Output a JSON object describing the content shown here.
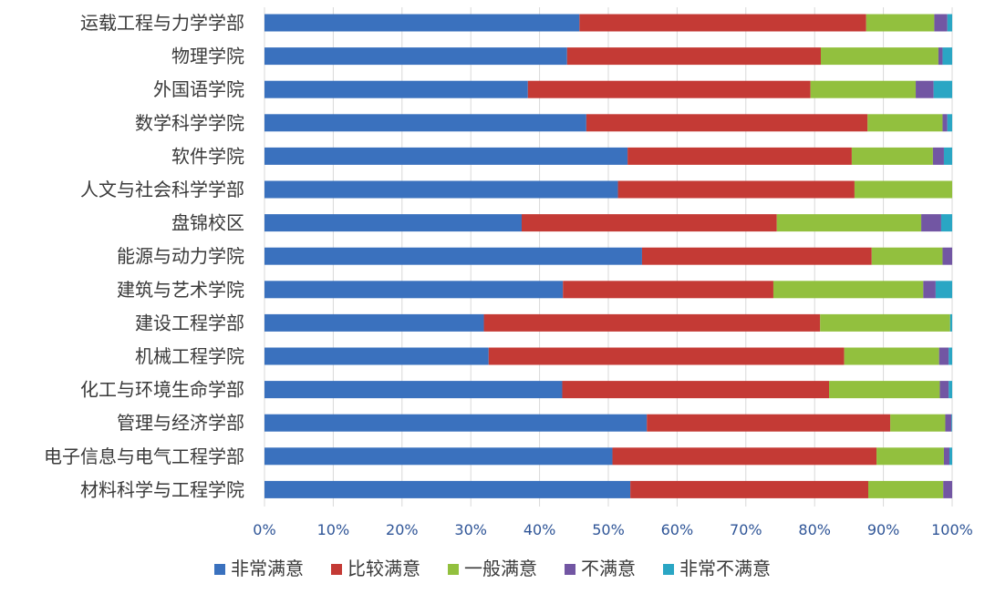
{
  "chart_data": {
    "type": "bar",
    "orientation": "horizontal",
    "stacked": true,
    "percent": true,
    "title": "",
    "xlabel": "",
    "ylabel": "",
    "xlim": [
      0,
      100
    ],
    "x_ticks": [
      "0%",
      "10%",
      "20%",
      "30%",
      "40%",
      "50%",
      "60%",
      "70%",
      "80%",
      "90%",
      "100%"
    ],
    "grid": true,
    "legend_position": "bottom",
    "categories": [
      "运载工程与力学学部",
      "物理学院",
      "外国语学院",
      "数学科学学院",
      "软件学院",
      "人文与社会科学学部",
      "盘锦校区",
      "能源与动力学院",
      "建筑与艺术学院",
      "建设工程学部",
      "机械工程学院",
      "化工与环境生命学部",
      "管理与经济学部",
      "电子信息与电气工程学部",
      "材料科学与工程学院"
    ],
    "series": [
      {
        "name": "非常满意",
        "color": "#3a71be",
        "values": [
          45.8,
          44.0,
          38.3,
          46.8,
          52.8,
          51.4,
          37.4,
          54.9,
          43.4,
          31.9,
          32.6,
          43.3,
          55.6,
          50.6,
          53.2
        ]
      },
      {
        "name": "比较满意",
        "color": "#c43a35",
        "values": [
          41.7,
          36.9,
          41.1,
          40.9,
          32.6,
          34.4,
          37.1,
          33.4,
          30.6,
          48.9,
          51.7,
          38.8,
          35.4,
          38.4,
          34.6
        ]
      },
      {
        "name": "一般满意",
        "color": "#92c03e",
        "values": [
          9.9,
          17.1,
          15.3,
          10.9,
          11.8,
          14.2,
          21.0,
          10.3,
          21.8,
          18.9,
          13.8,
          16.1,
          8.0,
          9.8,
          10.9
        ]
      },
      {
        "name": "不满意",
        "color": "#7256a3",
        "values": [
          1.9,
          0.6,
          2.6,
          0.7,
          1.6,
          0,
          2.9,
          1.4,
          1.8,
          0,
          1.4,
          1.3,
          0.9,
          0.8,
          1.3
        ]
      },
      {
        "name": "非常不满意",
        "color": "#2aa6c4",
        "values": [
          0.7,
          1.4,
          2.7,
          0.7,
          1.2,
          0,
          1.6,
          0,
          2.4,
          0.3,
          0.5,
          0.5,
          0.1,
          0.4,
          0
        ]
      }
    ]
  }
}
